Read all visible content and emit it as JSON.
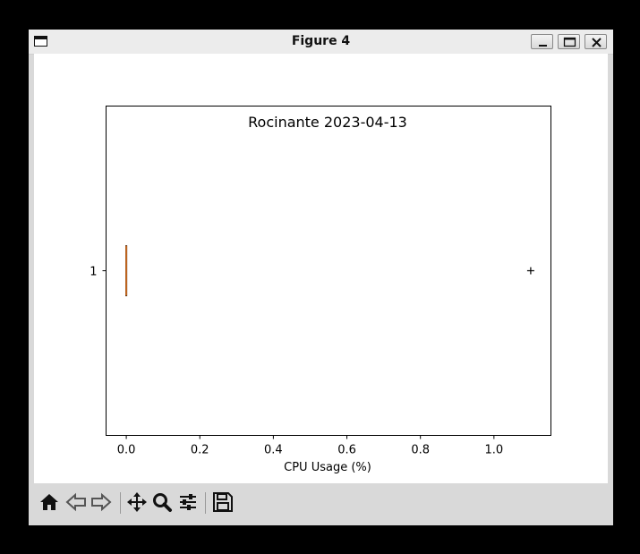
{
  "window": {
    "title": "Figure 4"
  },
  "chart_data": {
    "type": "boxplot",
    "orientation": "horizontal",
    "title": "Rocinante 2023-04-13",
    "xlabel": "CPU Usage (%)",
    "ylabel": "",
    "xlim": [
      -0.055,
      1.155
    ],
    "xticks": [
      0.0,
      0.2,
      0.4,
      0.6,
      0.8,
      1.0
    ],
    "xtick_labels": [
      "0.0",
      "0.2",
      "0.4",
      "0.6",
      "0.8",
      "1.0"
    ],
    "yticks": [
      1
    ],
    "ytick_labels": [
      "1"
    ],
    "series": [
      {
        "position": 1,
        "whislo": 0.0,
        "q1": 0.0,
        "med": 0.0,
        "q3": 0.0,
        "whishi": 0.0,
        "fliers": [
          1.1
        ]
      }
    ],
    "colors": {
      "box": "#000000",
      "median": "#c0651f"
    },
    "grid": false
  },
  "toolbar": {
    "buttons": [
      "home-icon",
      "back-icon",
      "forward-icon",
      "pan-icon",
      "zoom-icon",
      "configure-subplots-icon",
      "save-icon"
    ]
  }
}
